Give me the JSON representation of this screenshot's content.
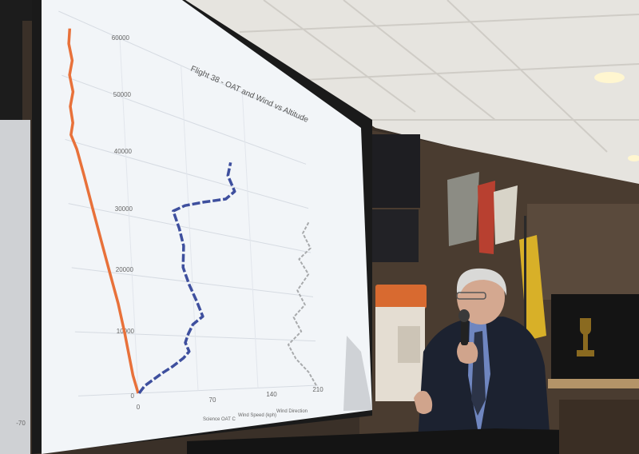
{
  "chart_data": {
    "type": "line",
    "title": "Flight 38 - OAT and Wind vs Altitude",
    "y_ticks": [
      "60000",
      "50000",
      "40000",
      "30000",
      "20000",
      "10000",
      "0"
    ],
    "x_ticks": [
      "-70",
      "0",
      "70",
      "140",
      "210"
    ],
    "legend": [
      "Science OAT C",
      "Wind Speed (kph)",
      "Wind Direction"
    ],
    "series": [
      {
        "name": "Science OAT C",
        "color": "#e8713a",
        "points": [
          [
            -58,
            58000
          ],
          [
            -60,
            55500
          ],
          [
            -57,
            53000
          ],
          [
            -61,
            50500
          ],
          [
            -58,
            48000
          ],
          [
            -62,
            45500
          ],
          [
            -60,
            43000
          ],
          [
            -63,
            41000
          ],
          [
            -57,
            39000
          ],
          [
            -50,
            35000
          ],
          [
            -42,
            30000
          ],
          [
            -34,
            25000
          ],
          [
            -26,
            20000
          ],
          [
            -18,
            15000
          ],
          [
            -12,
            10000
          ],
          [
            -10,
            8000
          ],
          [
            -5,
            3000
          ],
          [
            0,
            0
          ]
        ]
      },
      {
        "name": "Wind Speed (kph)",
        "color": "#3e4f9e",
        "points": [
          [
            1,
            0
          ],
          [
            8,
            1200
          ],
          [
            18,
            2200
          ],
          [
            30,
            3400
          ],
          [
            42,
            4500
          ],
          [
            55,
            6000
          ],
          [
            62,
            7200
          ],
          [
            58,
            8800
          ],
          [
            62,
            10400
          ],
          [
            68,
            12200
          ],
          [
            80,
            13800
          ],
          [
            74,
            16500
          ],
          [
            66,
            19500
          ],
          [
            60,
            22500
          ],
          [
            62,
            26500
          ],
          [
            58,
            29500
          ],
          [
            52,
            32500
          ],
          [
            66,
            34000
          ],
          [
            88,
            35500
          ],
          [
            114,
            37200
          ],
          [
            125,
            39200
          ],
          [
            118,
            42000
          ],
          [
            122,
            44800
          ]
        ]
      },
      {
        "name": "Wind Direction",
        "color": "#a8aaac",
        "points": [
          [
            208,
            0
          ],
          [
            200,
            3000
          ],
          [
            186,
            6000
          ],
          [
            178,
            9000
          ],
          [
            194,
            12000
          ],
          [
            186,
            15000
          ],
          [
            200,
            18000
          ],
          [
            192,
            21000
          ],
          [
            206,
            25000
          ],
          [
            196,
            28000
          ],
          [
            210,
            31000
          ],
          [
            202,
            34000
          ],
          [
            210,
            37000
          ]
        ]
      }
    ]
  }
}
